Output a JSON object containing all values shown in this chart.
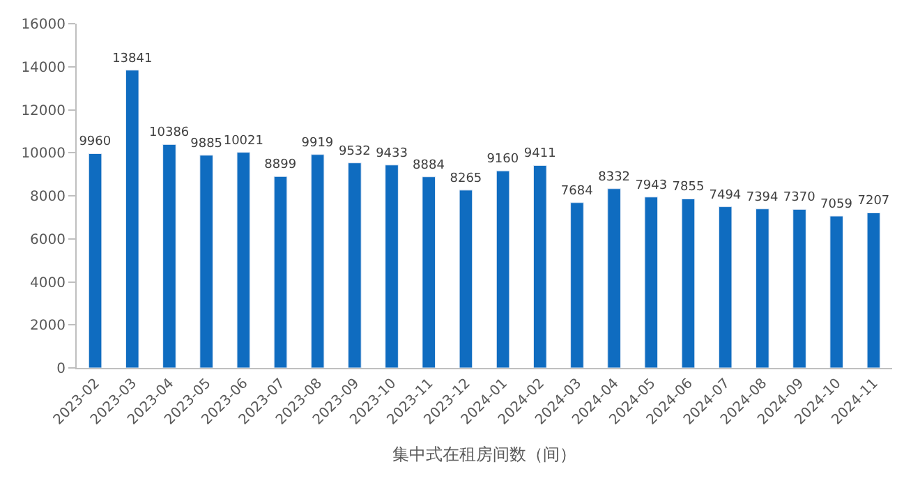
{
  "chart_data": {
    "type": "bar",
    "xlabel": "集中式在租房间数（间）",
    "categories": [
      "2023-02",
      "2023-03",
      "2023-04",
      "2023-05",
      "2023-06",
      "2023-07",
      "2023-08",
      "2023-09",
      "2023-10",
      "2023-11",
      "2023-12",
      "2024-01",
      "2024-02",
      "2024-03",
      "2024-04",
      "2024-05",
      "2024-06",
      "2024-07",
      "2024-08",
      "2024-09",
      "2024-10",
      "2024-11"
    ],
    "values": [
      9960,
      13841,
      10386,
      9885,
      10021,
      8899,
      9919,
      9532,
      9433,
      8884,
      8265,
      9160,
      9411,
      7684,
      8332,
      7943,
      7855,
      7494,
      7394,
      7370,
      7059,
      7207
    ],
    "color": "#0f6cc0",
    "ylim": [
      0,
      16000
    ],
    "yticks": [
      0,
      2000,
      4000,
      6000,
      8000,
      10000,
      12000,
      14000,
      16000
    ],
    "data_labels": true
  }
}
